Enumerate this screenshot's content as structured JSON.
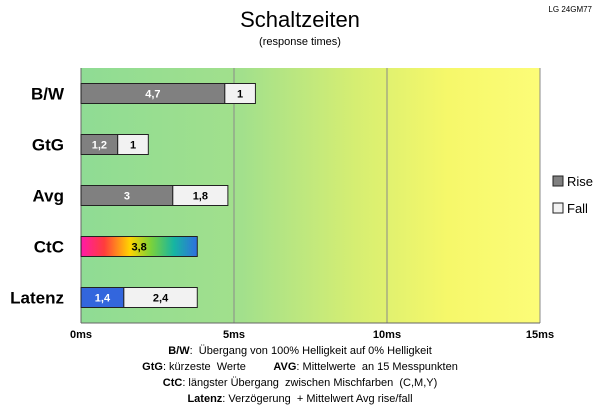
{
  "chart_data": {
    "type": "bar",
    "stacked": true,
    "orientation": "horizontal",
    "title": "Schaltzeiten",
    "subtitle": "(response times)",
    "model": "LG 24GM77",
    "categories": [
      "B/W",
      "GtG",
      "Avg",
      "CtC",
      "Latenz"
    ],
    "series": [
      {
        "name": "Rise",
        "color": "#808080",
        "values": [
          4.7,
          1.2,
          3,
          3.8,
          1.4
        ],
        "labels": [
          "4,7",
          "1,2",
          "3",
          "3,8",
          "1,4"
        ]
      },
      {
        "name": "Fall",
        "color": "#f2f2f2",
        "values": [
          1,
          1,
          1.8,
          null,
          2.4
        ],
        "labels": [
          "1",
          "1",
          "1,8",
          "",
          "2,4"
        ]
      }
    ],
    "xlim": [
      0,
      15
    ],
    "xticks": [
      0,
      5,
      10,
      15
    ],
    "xtick_labels": [
      "0ms",
      "5ms",
      "10ms",
      "15ms"
    ],
    "grid": true,
    "legend_position": "right",
    "background": "gradient green-yellow",
    "special_fills": {
      "CtC": "rainbow",
      "Latenz": "#3366dd"
    }
  },
  "notes": [
    {
      "key": "B/W",
      "text": ":  Übergang von 100% Helligkeit auf 0% Helligkeit"
    },
    {
      "key": "GtG",
      "text": ": kürzeste  Werte",
      "key2": "AVG",
      "text2": ": Mittelwerte  an 15 Messpunkten"
    },
    {
      "key": "CtC",
      "text": ": längster Übergang  zwischen Mischfarben  (C,M,Y)"
    },
    {
      "key": "Latenz",
      "text": ": Verzögerung  + Mittelwert Avg rise/fall"
    }
  ]
}
